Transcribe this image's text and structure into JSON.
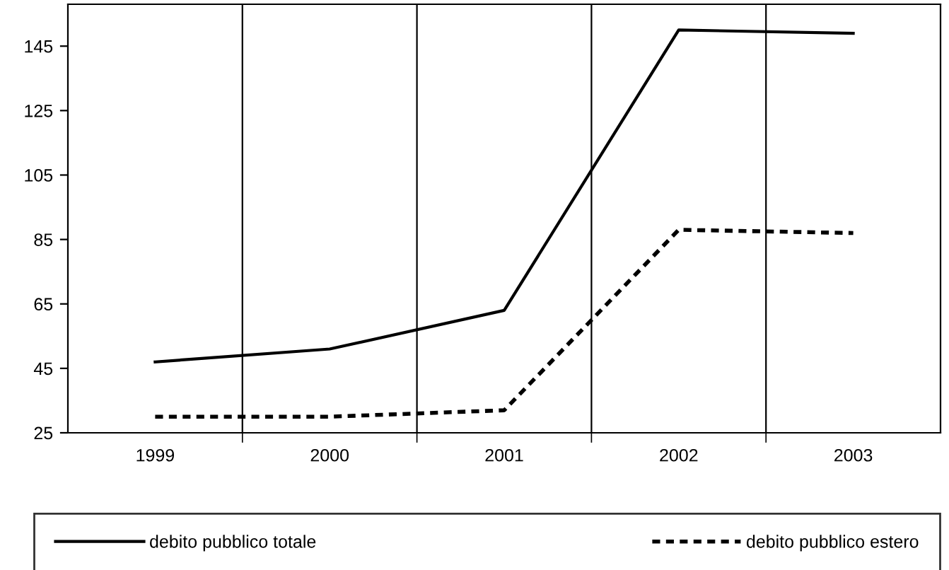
{
  "chart_data": {
    "type": "line",
    "categories": [
      "1999",
      "2000",
      "2001",
      "2002",
      "2003"
    ],
    "series": [
      {
        "name": "debito pubblico totale",
        "color": "#000000",
        "line_style": "solid",
        "values": [
          47,
          51,
          63,
          150,
          149
        ]
      },
      {
        "name": "debito pubblico estero",
        "color": "#000000",
        "line_style": "dashed",
        "values": [
          30,
          30,
          32,
          88,
          87
        ]
      }
    ],
    "ylim": [
      25,
      158
    ],
    "yticks": [
      25,
      45,
      65,
      85,
      105,
      125,
      145
    ],
    "grid": "x",
    "legend": "bottom",
    "marker": "none"
  }
}
